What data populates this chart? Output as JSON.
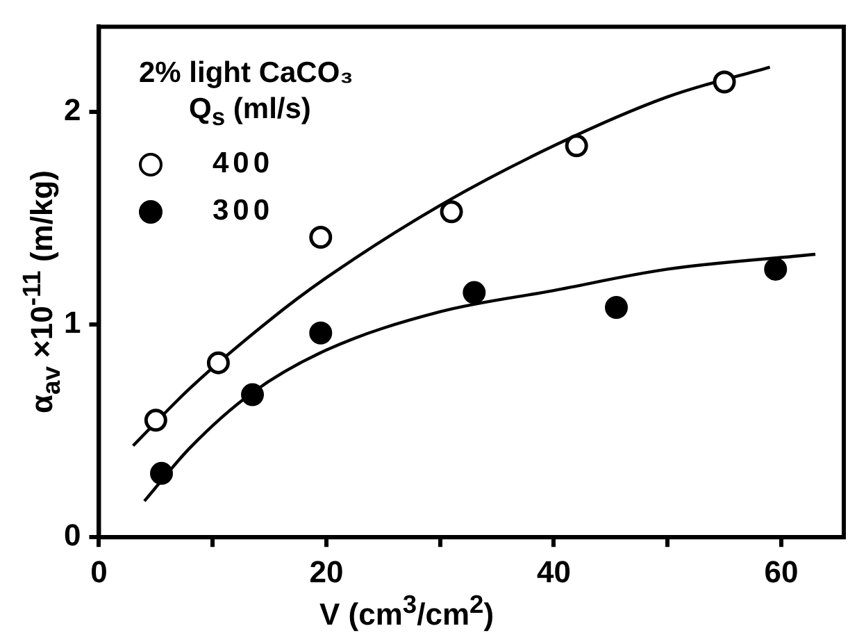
{
  "chart_data": {
    "type": "scatter",
    "xlabel": "V (cm$^{3}$/cm$^{2}$)",
    "ylabel": "α$_{av}$ ×10$^{-11}$ (m/kg)",
    "legend_title": "2% light CaCO₃\nQ$_{s}$ (ml/s)",
    "xlim": [
      0,
      65.5
    ],
    "ylim": [
      0,
      2.4
    ],
    "xticks": [
      0,
      {
        "value": 10,
        "label": null
      },
      20,
      {
        "value": 30,
        "label": null
      },
      40,
      {
        "value": 50,
        "label": null
      },
      60
    ],
    "yticks": [
      0,
      1,
      2
    ],
    "grid": false,
    "legend": "top left",
    "marker": "circle",
    "series": [
      {
        "name": "400",
        "color": "#ffffff",
        "x": [
          5,
          10.5,
          19.5,
          31,
          42,
          55
        ],
        "values": [
          0.55,
          0.82,
          1.41,
          1.53,
          1.84,
          2.14
        ]
      },
      {
        "name": "300",
        "color": "#000000",
        "x": [
          5.5,
          13.5,
          19.5,
          33,
          45.5,
          59.5
        ],
        "values": [
          0.3,
          0.67,
          0.96,
          1.15,
          1.08,
          1.26
        ]
      },
      {
        "type": "line",
        "color": "#000000",
        "marker": "none",
        "line_style": "solid",
        "x": [
          3,
          8,
          15,
          20,
          30,
          40,
          50,
          59
        ],
        "values": [
          0.43,
          0.7,
          1.02,
          1.22,
          1.56,
          1.84,
          2.07,
          2.21
        ]
      },
      {
        "type": "line",
        "color": "#000000",
        "marker": "none",
        "line_style": "solid",
        "x": [
          4,
          8,
          13.5,
          20,
          30,
          40,
          50,
          63
        ],
        "values": [
          0.17,
          0.42,
          0.68,
          0.88,
          1.06,
          1.16,
          1.26,
          1.33
        ]
      }
    ]
  }
}
